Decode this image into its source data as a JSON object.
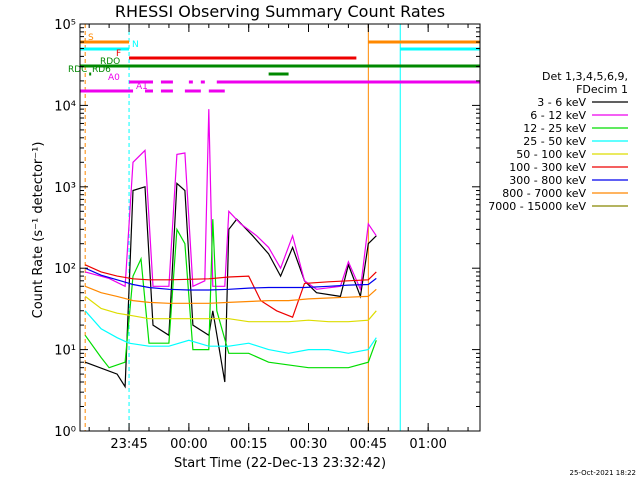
{
  "chart_data": {
    "type": "line",
    "title": "RHESSI Observing Summary Count Rates",
    "xlabel": "Start Time (22-Dec-13 23:32:42)",
    "ylabel": "Count Rate (s⁻¹ detector⁻¹)",
    "yscale": "log",
    "xlim": [
      "23:32:42",
      "01:13:00"
    ],
    "ylim": [
      1,
      100000
    ],
    "x_ticks": [
      "23:45",
      "00:00",
      "00:15",
      "00:30",
      "00:45",
      "01:00"
    ],
    "y_ticks": [
      "10⁰",
      "10¹",
      "10²",
      "10³",
      "10⁴",
      "10⁵"
    ],
    "legend_title": [
      "Det 1,3,4,5,6,9,",
      "FDecim 1"
    ],
    "legend_position": "right",
    "series": [
      {
        "name": "3 - 6 keV",
        "color": "#000000",
        "points": [
          [
            "23:34",
            7
          ],
          [
            "23:42",
            5
          ],
          [
            "23:44",
            3.5
          ],
          [
            "23:46",
            900
          ],
          [
            "23:49",
            1000
          ],
          [
            "23:51",
            20
          ],
          [
            "23:55",
            15
          ],
          [
            "23:57",
            1100
          ],
          [
            "23:59",
            900
          ],
          [
            "00:01",
            20
          ],
          [
            "00:05",
            15
          ],
          [
            "00:06",
            30
          ],
          [
            "00:09",
            4
          ],
          [
            "00:10",
            300
          ],
          [
            "00:12",
            400
          ],
          [
            "00:16",
            250
          ],
          [
            "00:20",
            150
          ],
          [
            "00:23",
            80
          ],
          [
            "00:26",
            180
          ],
          [
            "00:29",
            70
          ],
          [
            "00:32",
            50
          ],
          [
            "00:38",
            45
          ],
          [
            "00:40",
            110
          ],
          [
            "00:43",
            45
          ],
          [
            "00:45",
            200
          ],
          [
            "00:47",
            250
          ]
        ]
      },
      {
        "name": "6 - 12 keV",
        "color": "#ee00ee",
        "points": [
          [
            "23:34",
            90
          ],
          [
            "23:40",
            75
          ],
          [
            "23:44",
            60
          ],
          [
            "23:46",
            2000
          ],
          [
            "23:49",
            2800
          ],
          [
            "23:51",
            60
          ],
          [
            "23:55",
            60
          ],
          [
            "23:57",
            2500
          ],
          [
            "23:59",
            2600
          ],
          [
            "00:01",
            60
          ],
          [
            "00:04",
            70
          ],
          [
            "00:05",
            9000
          ],
          [
            "00:06",
            60
          ],
          [
            "00:09",
            60
          ],
          [
            "00:10",
            500
          ],
          [
            "00:13",
            350
          ],
          [
            "00:17",
            250
          ],
          [
            "00:20",
            180
          ],
          [
            "00:23",
            100
          ],
          [
            "00:26",
            250
          ],
          [
            "00:29",
            70
          ],
          [
            "00:32",
            55
          ],
          [
            "00:38",
            60
          ],
          [
            "00:40",
            120
          ],
          [
            "00:43",
            55
          ],
          [
            "00:45",
            350
          ],
          [
            "00:47",
            250
          ]
        ]
      },
      {
        "name": "12 - 25 keV",
        "color": "#00dd00",
        "points": [
          [
            "23:34",
            15
          ],
          [
            "23:38",
            8
          ],
          [
            "23:40",
            6
          ],
          [
            "23:44",
            7
          ],
          [
            "23:46",
            80
          ],
          [
            "23:48",
            130
          ],
          [
            "23:50",
            12
          ],
          [
            "23:55",
            12
          ],
          [
            "23:57",
            300
          ],
          [
            "23:59",
            200
          ],
          [
            "00:01",
            10
          ],
          [
            "00:05",
            10
          ],
          [
            "00:06",
            400
          ],
          [
            "00:07",
            30
          ],
          [
            "00:10",
            9
          ],
          [
            "00:15",
            9
          ],
          [
            "00:20",
            7
          ],
          [
            "00:30",
            6
          ],
          [
            "00:40",
            6
          ],
          [
            "00:45",
            7
          ],
          [
            "00:47",
            13
          ]
        ]
      },
      {
        "name": "25 - 50 keV",
        "color": "#00ffff",
        "points": [
          [
            "23:34",
            30
          ],
          [
            "23:38",
            18
          ],
          [
            "23:42",
            14
          ],
          [
            "23:45",
            12
          ],
          [
            "23:50",
            11
          ],
          [
            "23:55",
            11
          ],
          [
            "00:00",
            13
          ],
          [
            "00:05",
            11
          ],
          [
            "00:10",
            11
          ],
          [
            "00:15",
            12
          ],
          [
            "00:20",
            10
          ],
          [
            "00:25",
            9
          ],
          [
            "00:30",
            10
          ],
          [
            "00:35",
            10
          ],
          [
            "00:40",
            9
          ],
          [
            "00:45",
            10
          ],
          [
            "00:47",
            14
          ]
        ]
      },
      {
        "name": "50 - 100 keV",
        "color": "#dddd00",
        "points": [
          [
            "23:34",
            45
          ],
          [
            "23:38",
            32
          ],
          [
            "23:42",
            28
          ],
          [
            "23:46",
            26
          ],
          [
            "23:50",
            24
          ],
          [
            "23:55",
            24
          ],
          [
            "00:00",
            24
          ],
          [
            "00:05",
            24
          ],
          [
            "00:10",
            24
          ],
          [
            "00:15",
            22
          ],
          [
            "00:20",
            22
          ],
          [
            "00:25",
            22
          ],
          [
            "00:30",
            23
          ],
          [
            "00:35",
            22
          ],
          [
            "00:40",
            22
          ],
          [
            "00:45",
            23
          ],
          [
            "00:47",
            30
          ]
        ]
      },
      {
        "name": "100 - 300 keV",
        "color": "#ee0000",
        "points": [
          [
            "23:34",
            110
          ],
          [
            "23:38",
            90
          ],
          [
            "23:42",
            80
          ],
          [
            "23:46",
            74
          ],
          [
            "23:50",
            72
          ],
          [
            "23:55",
            72
          ],
          [
            "00:00",
            73
          ],
          [
            "00:05",
            74
          ],
          [
            "00:10",
            78
          ],
          [
            "00:15",
            80
          ],
          [
            "00:18",
            40
          ],
          [
            "00:22",
            30
          ],
          [
            "00:26",
            25
          ],
          [
            "00:29",
            65
          ],
          [
            "00:35",
            68
          ],
          [
            "00:40",
            70
          ],
          [
            "00:45",
            72
          ],
          [
            "00:47",
            90
          ]
        ]
      },
      {
        "name": "300 - 800 keV",
        "color": "#0000ee",
        "points": [
          [
            "23:34",
            100
          ],
          [
            "23:38",
            82
          ],
          [
            "23:42",
            72
          ],
          [
            "23:46",
            63
          ],
          [
            "23:50",
            58
          ],
          [
            "23:55",
            55
          ],
          [
            "00:00",
            54
          ],
          [
            "00:05",
            54
          ],
          [
            "00:10",
            55
          ],
          [
            "00:15",
            57
          ],
          [
            "00:20",
            58
          ],
          [
            "00:25",
            58
          ],
          [
            "00:29",
            58
          ],
          [
            "00:35",
            60
          ],
          [
            "00:40",
            62
          ],
          [
            "00:45",
            63
          ],
          [
            "00:47",
            75
          ]
        ]
      },
      {
        "name": "800 - 7000 keV",
        "color": "#ff8800",
        "points": [
          [
            "23:34",
            60
          ],
          [
            "23:38",
            50
          ],
          [
            "23:42",
            45
          ],
          [
            "23:46",
            40
          ],
          [
            "23:50",
            38
          ],
          [
            "23:55",
            37
          ],
          [
            "00:00",
            37
          ],
          [
            "00:05",
            37
          ],
          [
            "00:10",
            38
          ],
          [
            "00:15",
            39
          ],
          [
            "00:20",
            40
          ],
          [
            "00:25",
            40
          ],
          [
            "00:30",
            42
          ],
          [
            "00:35",
            43
          ],
          [
            "00:40",
            44
          ],
          [
            "00:45",
            45
          ],
          [
            "00:47",
            55
          ]
        ]
      },
      {
        "name": "7000 - 15000 keV",
        "color": "#888800",
        "points": []
      }
    ],
    "vertical_lines": [
      {
        "time": "23:34",
        "color": "#ff8800"
      },
      {
        "time": "23:45",
        "color": "#00ffff"
      },
      {
        "time": "00:45",
        "color": "#ff8800"
      },
      {
        "time": "00:53",
        "color": "#00ffff"
      },
      {
        "time": "01:13",
        "color": "#00ffff"
      }
    ],
    "flags": [
      {
        "label": "S",
        "color": "#ff8800",
        "segments": [
          [
            "23:32:42",
            "23:45"
          ],
          [
            "00:45",
            "01:13"
          ]
        ]
      },
      {
        "label": "N",
        "color": "#00ffff",
        "segments": [
          [
            "23:32:42",
            "23:45"
          ],
          [
            "00:53",
            "01:13"
          ]
        ]
      },
      {
        "label": "F",
        "color": "#ee0000",
        "segments": [
          [
            "23:45",
            "00:42"
          ]
        ]
      },
      {
        "label": "RDO",
        "color": "#008800",
        "segments": [
          [
            "23:32:42",
            "01:13"
          ]
        ]
      },
      {
        "label": "RDC",
        "color": "#008800",
        "segments": [
          [
            "00:20",
            "00:25"
          ]
        ]
      },
      {
        "label": "RD6",
        "color": "#008800",
        "segments": [
          [
            "23:35",
            "23:35:30"
          ]
        ]
      },
      {
        "label": "A0",
        "color": "#ee00ee",
        "segments": [
          [
            "23:45",
            "23:51"
          ],
          [
            "23:53",
            "23:56"
          ],
          [
            "00:00",
            "00:01"
          ],
          [
            "00:03",
            "00:04"
          ],
          [
            "00:07",
            "01:13"
          ]
        ]
      },
      {
        "label": "A1",
        "color": "#ee00ee",
        "segments": [
          [
            "23:32:42",
            "23:46"
          ],
          [
            "23:49",
            "23:51"
          ],
          [
            "23:53",
            "23:56"
          ],
          [
            "23:59",
            "00:03"
          ],
          [
            "00:05",
            "00:09"
          ]
        ]
      }
    ]
  },
  "footer": {
    "timestamp": "25-Oct-2021 18:22"
  }
}
